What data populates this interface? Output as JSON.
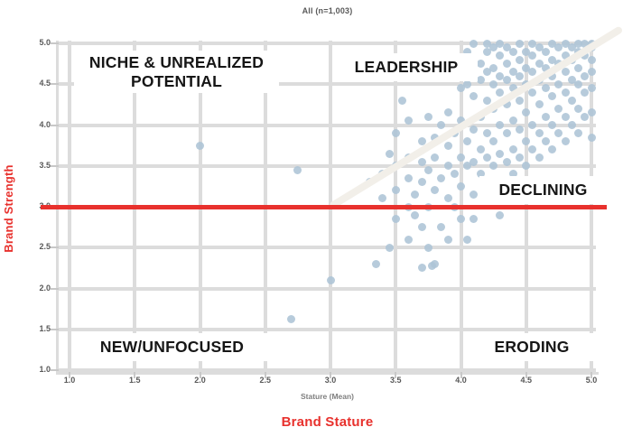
{
  "header": {
    "title": "All (n=1,003)"
  },
  "colors": {
    "accent_red": "#E8312D",
    "point_fill": "#ADC4D6",
    "gridline": "#DCDCDC",
    "diagonal_line": "#F2EFE9",
    "tick_text": "#595959",
    "quadrant_text": "#161616"
  },
  "quadrants": {
    "niche_line1": "NICHE & UNREALIZED",
    "niche_line2": "POTENTIAL",
    "leadership": "LEADERSHIP",
    "declining": "DECLINING",
    "new_unfocused": "NEW/UNFOCUSED",
    "eroding": "ERODING"
  },
  "chart_data": {
    "type": "scatter",
    "title": "All (n=1,003)",
    "xlabel": "Brand Stature",
    "ylabel": "Brand Strength",
    "x_axis_sublabel": "Stature (Mean)",
    "xlim": [
      1,
      5
    ],
    "ylim": [
      1,
      5
    ],
    "x_ticks": [
      "1.0",
      "1.5",
      "2.0",
      "2.5",
      "3.0",
      "3.5",
      "4.0",
      "4.5",
      "5.0"
    ],
    "y_ticks": [
      "5.0",
      "4.5",
      "4.0",
      "3.5",
      "3.0",
      "2.5",
      "2.0",
      "1.5",
      "1.0"
    ],
    "grid": true,
    "legend": false,
    "quadrant_labels": [
      "NICHE & UNREALIZED POTENTIAL",
      "LEADERSHIP",
      "DECLINING",
      "NEW/UNFOCUSED",
      "ERODING"
    ],
    "annotations": {
      "hline_y": 3.0,
      "hline_color": "#E8312D",
      "diagonal_from": [
        3.0,
        3.0
      ],
      "diagonal_to": [
        5.23,
        5.18
      ],
      "diagonal_color": "#F2EFE9"
    },
    "points": [
      [
        2.0,
        3.75
      ],
      [
        2.75,
        3.45
      ],
      [
        2.7,
        1.62
      ],
      [
        3.0,
        2.1
      ],
      [
        3.3,
        3.3
      ],
      [
        3.35,
        2.3
      ],
      [
        3.4,
        3.1
      ],
      [
        3.4,
        3.4
      ],
      [
        3.45,
        2.5
      ],
      [
        3.45,
        3.65
      ],
      [
        3.5,
        2.85
      ],
      [
        3.5,
        3.2
      ],
      [
        3.5,
        3.5
      ],
      [
        3.5,
        3.9
      ],
      [
        3.55,
        4.3
      ],
      [
        3.6,
        2.6
      ],
      [
        3.6,
        3.0
      ],
      [
        3.6,
        3.35
      ],
      [
        3.6,
        3.6
      ],
      [
        3.6,
        4.05
      ],
      [
        3.65,
        2.9
      ],
      [
        3.65,
        3.15
      ],
      [
        3.7,
        2.25
      ],
      [
        3.7,
        2.75
      ],
      [
        3.7,
        3.3
      ],
      [
        3.7,
        3.55
      ],
      [
        3.7,
        3.8
      ],
      [
        3.75,
        2.5
      ],
      [
        3.75,
        3.0
      ],
      [
        3.75,
        3.45
      ],
      [
        3.75,
        4.1
      ],
      [
        3.78,
        2.28
      ],
      [
        3.8,
        2.3
      ],
      [
        3.8,
        3.2
      ],
      [
        3.8,
        3.6
      ],
      [
        3.8,
        3.85
      ],
      [
        3.85,
        2.75
      ],
      [
        3.85,
        3.35
      ],
      [
        3.85,
        4.0
      ],
      [
        3.9,
        2.6
      ],
      [
        3.9,
        3.1
      ],
      [
        3.9,
        3.5
      ],
      [
        3.9,
        3.75
      ],
      [
        3.9,
        4.15
      ],
      [
        3.95,
        3.0
      ],
      [
        3.95,
        3.4
      ],
      [
        3.95,
        3.9
      ],
      [
        4.0,
        2.85
      ],
      [
        4.0,
        3.25
      ],
      [
        4.0,
        3.6
      ],
      [
        4.0,
        4.05
      ],
      [
        4.0,
        4.45
      ],
      [
        4.0,
        4.7
      ],
      [
        4.05,
        2.6
      ],
      [
        4.05,
        3.5
      ],
      [
        4.05,
        3.8
      ],
      [
        4.05,
        4.5
      ],
      [
        4.05,
        4.9
      ],
      [
        4.1,
        2.85
      ],
      [
        4.1,
        3.15
      ],
      [
        4.1,
        3.55
      ],
      [
        4.1,
        3.95
      ],
      [
        4.1,
        4.35
      ],
      [
        4.1,
        4.6
      ],
      [
        4.1,
        4.8
      ],
      [
        4.1,
        5.0
      ],
      [
        4.15,
        3.4
      ],
      [
        4.15,
        3.7
      ],
      [
        4.15,
        4.1
      ],
      [
        4.15,
        4.55
      ],
      [
        4.15,
        4.75
      ],
      [
        4.2,
        3.2
      ],
      [
        4.2,
        3.6
      ],
      [
        4.2,
        3.9
      ],
      [
        4.2,
        4.3
      ],
      [
        4.2,
        4.65
      ],
      [
        4.2,
        4.9
      ],
      [
        4.2,
        5.0
      ],
      [
        4.25,
        3.5
      ],
      [
        4.25,
        3.8
      ],
      [
        4.25,
        4.2
      ],
      [
        4.25,
        4.5
      ],
      [
        4.25,
        4.7
      ],
      [
        4.25,
        4.95
      ],
      [
        4.3,
        2.9
      ],
      [
        4.3,
        3.3
      ],
      [
        4.3,
        3.65
      ],
      [
        4.3,
        4.0
      ],
      [
        4.3,
        4.4
      ],
      [
        4.3,
        4.6
      ],
      [
        4.3,
        4.85
      ],
      [
        4.3,
        5.0
      ],
      [
        4.35,
        3.55
      ],
      [
        4.35,
        3.9
      ],
      [
        4.35,
        4.25
      ],
      [
        4.35,
        4.55
      ],
      [
        4.35,
        4.75
      ],
      [
        4.35,
        4.95
      ],
      [
        4.4,
        3.4
      ],
      [
        4.4,
        3.7
      ],
      [
        4.4,
        4.05
      ],
      [
        4.4,
        4.45
      ],
      [
        4.4,
        4.65
      ],
      [
        4.4,
        4.9
      ],
      [
        4.45,
        3.6
      ],
      [
        4.45,
        3.95
      ],
      [
        4.45,
        4.3
      ],
      [
        4.45,
        4.6
      ],
      [
        4.45,
        4.8
      ],
      [
        4.45,
        5.0
      ],
      [
        4.5,
        3.5
      ],
      [
        4.5,
        3.8
      ],
      [
        4.5,
        4.15
      ],
      [
        4.5,
        4.5
      ],
      [
        4.5,
        4.7
      ],
      [
        4.5,
        4.9
      ],
      [
        4.55,
        3.7
      ],
      [
        4.55,
        4.0
      ],
      [
        4.55,
        4.4
      ],
      [
        4.55,
        4.65
      ],
      [
        4.55,
        4.85
      ],
      [
        4.55,
        5.0
      ],
      [
        4.6,
        3.6
      ],
      [
        4.6,
        3.9
      ],
      [
        4.6,
        4.25
      ],
      [
        4.6,
        4.55
      ],
      [
        4.6,
        4.75
      ],
      [
        4.6,
        4.95
      ],
      [
        4.65,
        3.8
      ],
      [
        4.65,
        4.1
      ],
      [
        4.65,
        4.45
      ],
      [
        4.65,
        4.7
      ],
      [
        4.65,
        4.9
      ],
      [
        4.7,
        3.7
      ],
      [
        4.7,
        4.0
      ],
      [
        4.7,
        4.35
      ],
      [
        4.7,
        4.6
      ],
      [
        4.7,
        4.8
      ],
      [
        4.7,
        5.0
      ],
      [
        4.75,
        3.9
      ],
      [
        4.75,
        4.2
      ],
      [
        4.75,
        4.5
      ],
      [
        4.75,
        4.75
      ],
      [
        4.75,
        4.95
      ],
      [
        4.8,
        3.8
      ],
      [
        4.8,
        4.1
      ],
      [
        4.8,
        4.4
      ],
      [
        4.8,
        4.65
      ],
      [
        4.8,
        4.85
      ],
      [
        4.8,
        5.0
      ],
      [
        4.85,
        4.0
      ],
      [
        4.85,
        4.3
      ],
      [
        4.85,
        4.55
      ],
      [
        4.85,
        4.8
      ],
      [
        4.85,
        4.95
      ],
      [
        4.9,
        3.9
      ],
      [
        4.9,
        4.2
      ],
      [
        4.9,
        4.5
      ],
      [
        4.9,
        4.7
      ],
      [
        4.9,
        4.9
      ],
      [
        4.9,
        5.0
      ],
      [
        4.95,
        4.1
      ],
      [
        4.95,
        4.4
      ],
      [
        4.95,
        4.6
      ],
      [
        4.95,
        4.85
      ],
      [
        4.95,
        5.0
      ],
      [
        5.0,
        3.85
      ],
      [
        5.0,
        4.15
      ],
      [
        5.0,
        4.45
      ],
      [
        5.0,
        4.65
      ],
      [
        5.0,
        4.8
      ],
      [
        5.0,
        4.95
      ],
      [
        5.0,
        5.0
      ]
    ]
  }
}
